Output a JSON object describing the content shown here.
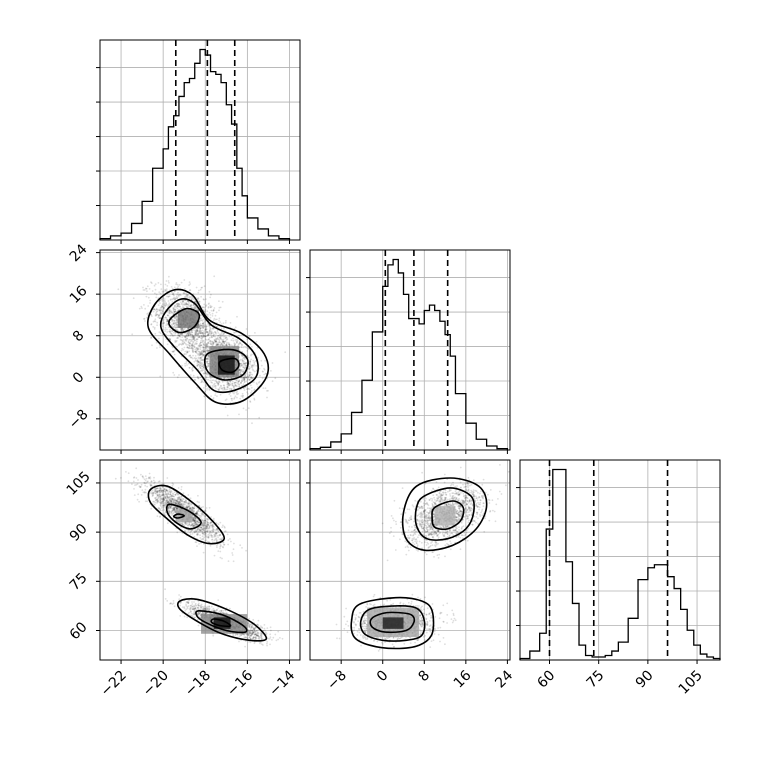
{
  "chart_data": {
    "type": "corner",
    "title": "",
    "grid": true,
    "parameters": [
      {
        "index": 0,
        "range": [
          -23,
          -13.5
        ],
        "ticks": [
          -22,
          -20,
          -18,
          -16,
          -14
        ],
        "tick_labels": [
          "−22",
          "−20",
          "−18",
          "−16",
          "−14"
        ],
        "quantiles": [
          -19.4,
          -17.9,
          -16.6
        ],
        "hist_bin_edges": [
          -23,
          -22.5,
          -22,
          -21.5,
          -21,
          -20.5,
          -20,
          -19.75,
          -19.5,
          -19.25,
          -19,
          -18.75,
          -18.5,
          -18.25,
          -18,
          -17.75,
          -17.5,
          -17.25,
          -17,
          -16.75,
          -16.5,
          -16.25,
          -16,
          -15.5,
          -15,
          -14.5,
          -14
        ],
        "hist_counts": [
          1,
          3,
          5,
          12,
          28,
          52,
          66,
          82,
          90,
          104,
          114,
          117,
          128,
          138,
          134,
          122,
          120,
          114,
          98,
          84,
          52,
          32,
          16,
          8,
          3,
          1
        ]
      },
      {
        "index": 1,
        "range": [
          -14,
          24.5
        ],
        "ticks": [
          -8,
          0,
          8,
          16,
          24
        ],
        "tick_labels": [
          "−8",
          "0",
          "8",
          "16",
          "24"
        ],
        "quantiles": [
          0.5,
          6,
          12.5
        ],
        "hist_bin_edges": [
          -14,
          -12,
          -10,
          -8,
          -6,
          -4,
          -2,
          0,
          1,
          2,
          3,
          4,
          5,
          6,
          7,
          8,
          9,
          10,
          11,
          12,
          13,
          14,
          16,
          18,
          20,
          22,
          24
        ],
        "hist_counts": [
          1,
          2,
          6,
          12,
          28,
          52,
          88,
          122,
          138,
          142,
          132,
          116,
          98,
          98,
          94,
          104,
          108,
          104,
          96,
          86,
          70,
          42,
          20,
          8,
          3,
          1
        ]
      },
      {
        "index": 2,
        "range": [
          51,
          112
        ],
        "ticks": [
          60,
          75,
          90,
          105
        ],
        "tick_labels": [
          "60",
          "75",
          "90",
          "105"
        ],
        "quantiles": [
          60,
          73.5,
          96
        ],
        "hist_bin_edges": [
          51,
          54,
          57,
          59,
          61,
          63,
          65,
          67,
          69,
          71,
          73,
          75,
          77,
          79,
          81,
          84,
          87,
          90,
          92,
          94,
          96,
          98,
          100,
          102,
          104,
          106,
          108,
          110,
          112
        ],
        "hist_counts": [
          1,
          6,
          18,
          88,
          128,
          128,
          66,
          38,
          10,
          3,
          2,
          2,
          3,
          6,
          12,
          28,
          54,
          62,
          64,
          64,
          56,
          48,
          34,
          20,
          10,
          4,
          2,
          1
        ]
      }
    ],
    "pairs": [
      {
        "x_param": 0,
        "y_param": 1,
        "point_clusters": [
          {
            "center": [
              -18.9,
              11
            ],
            "spread": [
              0.8,
              3.2
            ],
            "corr": -0.35,
            "count": 1400
          },
          {
            "center": [
              -17.1,
              2.5
            ],
            "spread": [
              0.8,
              3.0
            ],
            "corr": -0.35,
            "count": 1800
          }
        ],
        "density_cells": [
          {
            "x": [
              -17.4,
              -16.6
            ],
            "y": [
              0.5,
              4.2
            ],
            "level": 0.95
          },
          {
            "x": [
              -19.3,
              -18.3
            ],
            "y": [
              9.5,
              13
            ],
            "level": 0.55
          },
          {
            "x": [
              -17.8,
              -16.4
            ],
            "y": [
              0,
              6
            ],
            "level": 0.5
          }
        ],
        "contours": [
          [
            [
              -20.4,
              14
            ],
            [
              -19.5,
              16.8
            ],
            [
              -18.6,
              15.8
            ],
            [
              -17.8,
              11
            ],
            [
              -16.3,
              8.5
            ],
            [
              -15.2,
              4.5
            ],
            [
              -15.1,
              0
            ],
            [
              -16.2,
              -4.5
            ],
            [
              -17.5,
              -4.8
            ],
            [
              -18.5,
              -1
            ],
            [
              -19.7,
              4.5
            ],
            [
              -20.7,
              9.5
            ]
          ],
          [
            [
              -19.9,
              12.5
            ],
            [
              -19.2,
              15
            ],
            [
              -18.5,
              14.2
            ],
            [
              -17.7,
              10
            ],
            [
              -16.4,
              7.5
            ],
            [
              -15.6,
              4
            ],
            [
              -15.6,
              0
            ],
            [
              -16.6,
              -2.5
            ],
            [
              -17.6,
              -2.5
            ],
            [
              -18.4,
              1.5
            ],
            [
              -19.5,
              6
            ],
            [
              -20.1,
              9.5
            ]
          ],
          [
            [
              -19.6,
              11.5
            ],
            [
              -18.9,
              13.2
            ],
            [
              -18.3,
              12.2
            ],
            [
              -18.5,
              9.8
            ],
            [
              -19.2,
              8.6
            ],
            [
              -19.7,
              10
            ]
          ],
          [
            [
              -17.9,
              4.5
            ],
            [
              -16.7,
              5.3
            ],
            [
              -16,
              3.5
            ],
            [
              -16.2,
              0.5
            ],
            [
              -17.1,
              -0.5
            ],
            [
              -17.9,
              1.2
            ]
          ],
          [
            [
              -17.3,
              3
            ],
            [
              -16.6,
              3.6
            ],
            [
              -16.4,
              2.3
            ],
            [
              -16.7,
              1
            ],
            [
              -17.2,
              1.4
            ]
          ]
        ]
      },
      {
        "x_param": 0,
        "y_param": 2,
        "point_clusters": [
          {
            "center": [
              -19,
              96
            ],
            "spread": [
              0.9,
              4.5
            ],
            "corr": -0.85,
            "count": 1500
          },
          {
            "center": [
              -17,
              62.5
            ],
            "spread": [
              0.9,
              2.6
            ],
            "corr": -0.8,
            "count": 1500
          }
        ],
        "density_cells": [
          {
            "x": [
              -17.6,
              -16.8
            ],
            "y": [
              60.5,
              64
            ],
            "level": 0.95
          },
          {
            "x": [
              -19.4,
              -18.6
            ],
            "y": [
              93,
              97
            ],
            "level": 0.35
          },
          {
            "x": [
              -18.2,
              -16
            ],
            "y": [
              59,
              65
            ],
            "level": 0.45
          }
        ],
        "contours": [
          [
            [
              -20.6,
              103
            ],
            [
              -19.8,
              104
            ],
            [
              -18.6,
              99
            ],
            [
              -17.6,
              93
            ],
            [
              -17.1,
              88
            ],
            [
              -17.8,
              86.5
            ],
            [
              -18.8,
              89
            ],
            [
              -19.8,
              94
            ],
            [
              -20.6,
              99
            ]
          ],
          [
            [
              -19.7,
              98.5
            ],
            [
              -18.8,
              96.5
            ],
            [
              -18.2,
              93
            ],
            [
              -18.7,
              91
            ],
            [
              -19.4,
              93
            ],
            [
              -19.8,
              96
            ]
          ],
          [
            [
              -19.3,
              95.5
            ],
            [
              -19,
              95
            ],
            [
              -19.3,
              94.3
            ],
            [
              -19.5,
              94.8
            ]
          ],
          [
            [
              -19.2,
              69
            ],
            [
              -18.4,
              69.5
            ],
            [
              -17,
              66.5
            ],
            [
              -15.7,
              62
            ],
            [
              -15.1,
              57.5
            ],
            [
              -15.9,
              57
            ],
            [
              -17.2,
              59
            ],
            [
              -18.3,
              62.5
            ],
            [
              -19.2,
              66.5
            ]
          ],
          [
            [
              -18.3,
              66
            ],
            [
              -17.2,
              64.8
            ],
            [
              -16.2,
              61.5
            ],
            [
              -16.1,
              59.5
            ],
            [
              -17,
              60
            ],
            [
              -18,
              62.5
            ],
            [
              -18.4,
              64.5
            ]
          ],
          [
            [
              -17.6,
              63.5
            ],
            [
              -17.1,
              62.8
            ],
            [
              -16.8,
              61.4
            ],
            [
              -17.3,
              61.5
            ],
            [
              -17.7,
              62.5
            ]
          ]
        ]
      },
      {
        "x_param": 1,
        "y_param": 2,
        "point_clusters": [
          {
            "center": [
              2.5,
              62.5
            ],
            "spread": [
              3.5,
              2.6
            ],
            "corr": 0.1,
            "count": 1500
          },
          {
            "center": [
              12,
              95
            ],
            "spread": [
              3.8,
              4.5
            ],
            "corr": 0.45,
            "count": 1500
          }
        ],
        "density_cells": [
          {
            "x": [
              0,
              4
            ],
            "y": [
              60.5,
              64
            ],
            "level": 0.9
          },
          {
            "x": [
              -3,
              7
            ],
            "y": [
              58,
              67
            ],
            "level": 0.35
          },
          {
            "x": [
              10,
              14
            ],
            "y": [
              92,
              98
            ],
            "level": 0.3
          }
        ],
        "contours": [
          [
            [
              2.5,
              70
            ],
            [
              7.5,
              69
            ],
            [
              9.5,
              66
            ],
            [
              9.5,
              59
            ],
            [
              7,
              55.5
            ],
            [
              2.5,
              54.5
            ],
            [
              -2.5,
              55.5
            ],
            [
              -5.5,
              58
            ],
            [
              -6,
              63
            ],
            [
              -4.5,
              68
            ]
          ],
          [
            [
              2.5,
              67.5
            ],
            [
              6.5,
              66.8
            ],
            [
              8,
              63
            ],
            [
              7.5,
              58.5
            ],
            [
              4.5,
              57
            ],
            [
              0,
              57
            ],
            [
              -3.5,
              59
            ],
            [
              -4.2,
              63
            ],
            [
              -2.5,
              66.5
            ]
          ],
          [
            [
              2.5,
              65.5
            ],
            [
              5.5,
              64.8
            ],
            [
              6,
              62.5
            ],
            [
              4.5,
              60
            ],
            [
              0.5,
              59.5
            ],
            [
              -2,
              61
            ],
            [
              -2.2,
              63.5
            ],
            [
              0,
              65.2
            ]
          ],
          [
            [
              6.5,
              104
            ],
            [
              13,
              106.5
            ],
            [
              18.5,
              104
            ],
            [
              20,
              98
            ],
            [
              18,
              91
            ],
            [
              13.5,
              86
            ],
            [
              8,
              84.5
            ],
            [
              4.5,
              88
            ],
            [
              4,
              96
            ]
          ],
          [
            [
              8,
              101
            ],
            [
              13,
              103.5
            ],
            [
              17,
              101
            ],
            [
              17.5,
              96
            ],
            [
              16,
              91
            ],
            [
              12.5,
              88
            ],
            [
              8.5,
              88
            ],
            [
              6.5,
              92
            ],
            [
              6.5,
              97.5
            ]
          ],
          [
            [
              10,
              97.5
            ],
            [
              13.5,
              99.5
            ],
            [
              15.5,
              97.5
            ],
            [
              15,
              93.5
            ],
            [
              12.5,
              91
            ],
            [
              10,
              91.5
            ],
            [
              9.5,
              94.5
            ]
          ]
        ]
      }
    ]
  }
}
